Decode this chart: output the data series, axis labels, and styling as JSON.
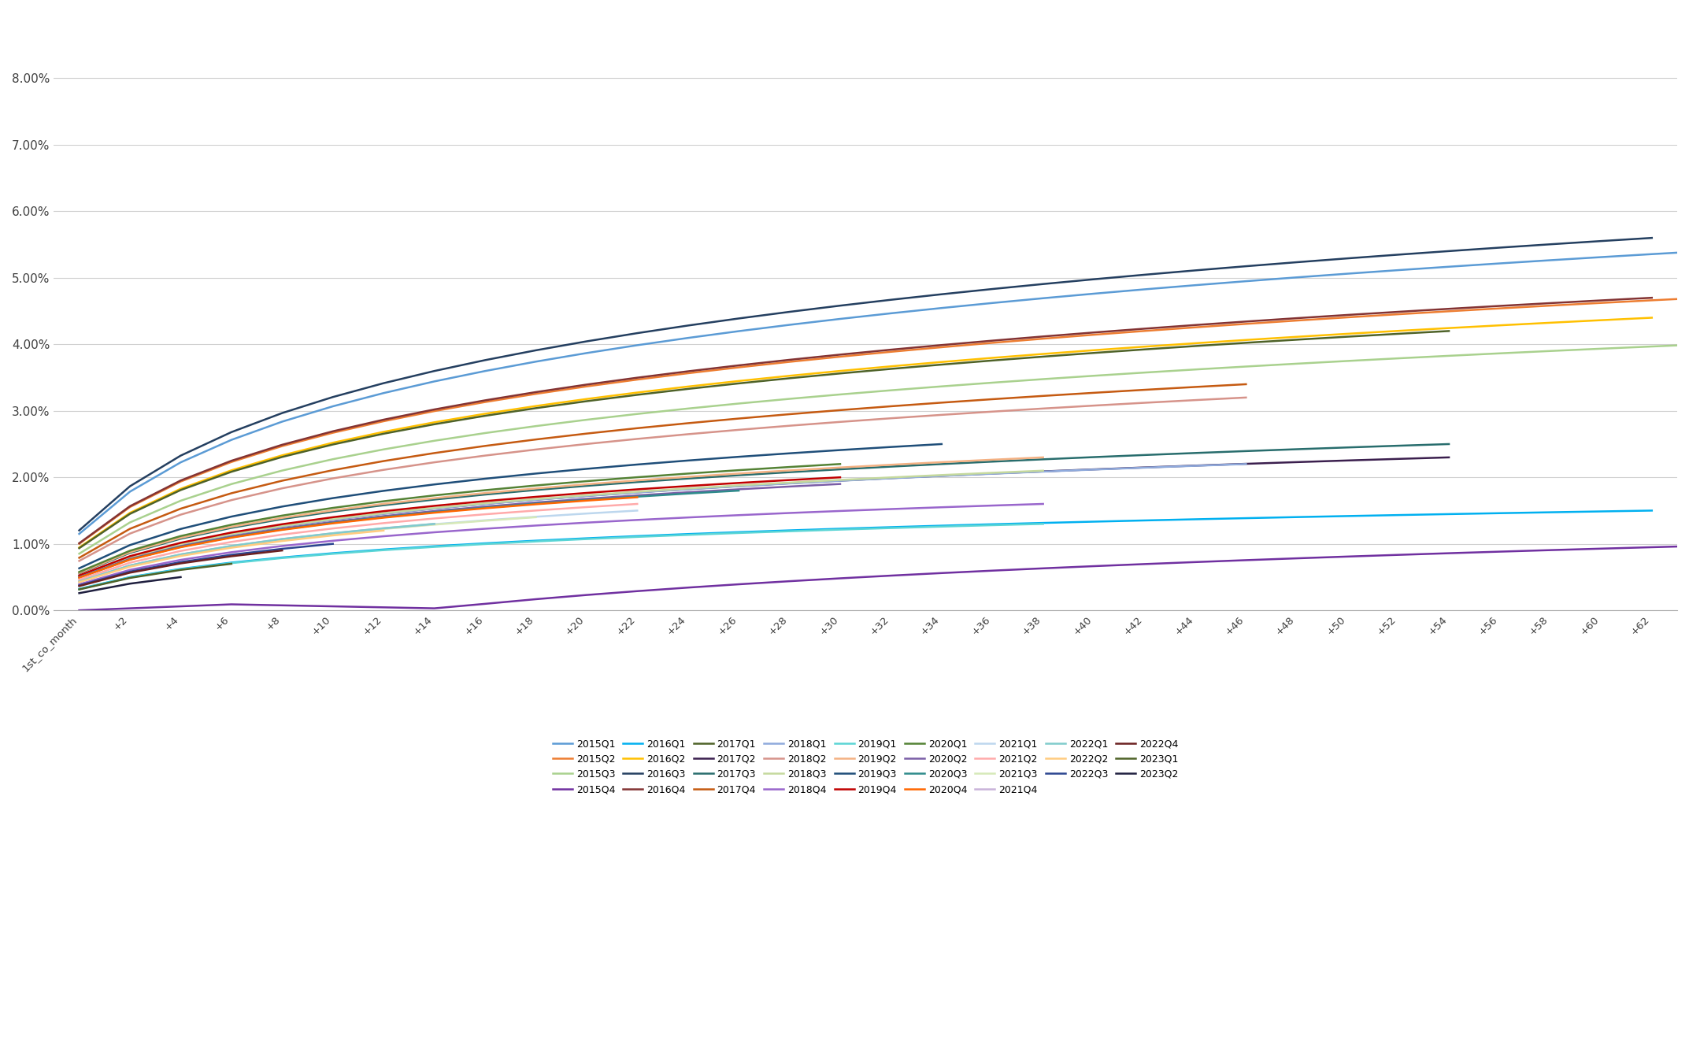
{
  "background_color": "#ffffff",
  "x_tick_labels": [
    "1st_co_month",
    "+2",
    "+4",
    "+6",
    "+8",
    "+10",
    "+12",
    "+14",
    "+16",
    "+18",
    "+20",
    "+22",
    "+24",
    "+26",
    "+28",
    "+30",
    "+32",
    "+34",
    "+36",
    "+38",
    "+40",
    "+42",
    "+44",
    "+46",
    "+48",
    "+50",
    "+52",
    "+54",
    "+56",
    "+58",
    "+60",
    "+62"
  ],
  "cohorts": [
    {
      "label": "2015Q1",
      "color": "#5B9BD5",
      "n": 33,
      "peak": 0.054,
      "special": false
    },
    {
      "label": "2015Q2",
      "color": "#ED7D31",
      "n": 33,
      "peak": 0.047,
      "special": false
    },
    {
      "label": "2015Q3",
      "color": "#A9D18E",
      "n": 33,
      "peak": 0.04,
      "special": false
    },
    {
      "label": "2015Q4",
      "color": "#7030A0",
      "n": 33,
      "peak": 0.0097,
      "special": true
    },
    {
      "label": "2016Q1",
      "color": "#00B0F0",
      "n": 32,
      "peak": 0.015,
      "special": false
    },
    {
      "label": "2016Q2",
      "color": "#FFC000",
      "n": 32,
      "peak": 0.044,
      "special": false
    },
    {
      "label": "2016Q3",
      "color": "#243F60",
      "n": 32,
      "peak": 0.056,
      "special": false
    },
    {
      "label": "2016Q4",
      "color": "#833333",
      "n": 32,
      "peak": 0.047,
      "special": false
    },
    {
      "label": "2017Q1",
      "color": "#4E6228",
      "n": 28,
      "peak": 0.042,
      "special": false
    },
    {
      "label": "2017Q2",
      "color": "#3B1F4E",
      "n": 28,
      "peak": 0.023,
      "special": false
    },
    {
      "label": "2017Q3",
      "color": "#286D6D",
      "n": 28,
      "peak": 0.025,
      "special": false
    },
    {
      "label": "2017Q4",
      "color": "#C55A11",
      "n": 24,
      "peak": 0.034,
      "special": false
    },
    {
      "label": "2018Q1",
      "color": "#8FAADC",
      "n": 24,
      "peak": 0.022,
      "special": false
    },
    {
      "label": "2018Q2",
      "color": "#D6938A",
      "n": 24,
      "peak": 0.032,
      "special": false
    },
    {
      "label": "2018Q3",
      "color": "#C5D99D",
      "n": 20,
      "peak": 0.021,
      "special": false
    },
    {
      "label": "2018Q4",
      "color": "#9966CC",
      "n": 20,
      "peak": 0.016,
      "special": false
    },
    {
      "label": "2019Q1",
      "color": "#5BD5D5",
      "n": 20,
      "peak": 0.013,
      "special": false
    },
    {
      "label": "2019Q2",
      "color": "#F4B183",
      "n": 20,
      "peak": 0.023,
      "special": false
    },
    {
      "label": "2019Q3",
      "color": "#1F4E79",
      "n": 18,
      "peak": 0.025,
      "special": false
    },
    {
      "label": "2019Q4",
      "color": "#C00000",
      "n": 16,
      "peak": 0.02,
      "special": false
    },
    {
      "label": "2020Q1",
      "color": "#548235",
      "n": 16,
      "peak": 0.022,
      "special": false
    },
    {
      "label": "2020Q2",
      "color": "#7B5EA7",
      "n": 16,
      "peak": 0.019,
      "special": false
    },
    {
      "label": "2020Q3",
      "color": "#2E8B8B",
      "n": 14,
      "peak": 0.018,
      "special": false
    },
    {
      "label": "2020Q4",
      "color": "#FF6600",
      "n": 12,
      "peak": 0.017,
      "special": false
    },
    {
      "label": "2021Q1",
      "color": "#BDD7EE",
      "n": 12,
      "peak": 0.015,
      "special": false
    },
    {
      "label": "2021Q2",
      "color": "#FFAAAA",
      "n": 12,
      "peak": 0.016,
      "special": false
    },
    {
      "label": "2021Q3",
      "color": "#D6E9B8",
      "n": 10,
      "peak": 0.014,
      "special": false
    },
    {
      "label": "2021Q4",
      "color": "#C9B3D9",
      "n": 8,
      "peak": 0.013,
      "special": false
    },
    {
      "label": "2022Q1",
      "color": "#80CCCC",
      "n": 8,
      "peak": 0.013,
      "special": false
    },
    {
      "label": "2022Q2",
      "color": "#FFCC80",
      "n": 7,
      "peak": 0.012,
      "special": false
    },
    {
      "label": "2022Q3",
      "color": "#2B4590",
      "n": 6,
      "peak": 0.01,
      "special": false
    },
    {
      "label": "2022Q4",
      "color": "#6B2020",
      "n": 5,
      "peak": 0.009,
      "special": false
    },
    {
      "label": "2023Q1",
      "color": "#4E6228",
      "n": 4,
      "peak": 0.007,
      "special": false
    },
    {
      "label": "2023Q2",
      "color": "#1F1F3F",
      "n": 3,
      "peak": 0.005,
      "special": false
    }
  ]
}
